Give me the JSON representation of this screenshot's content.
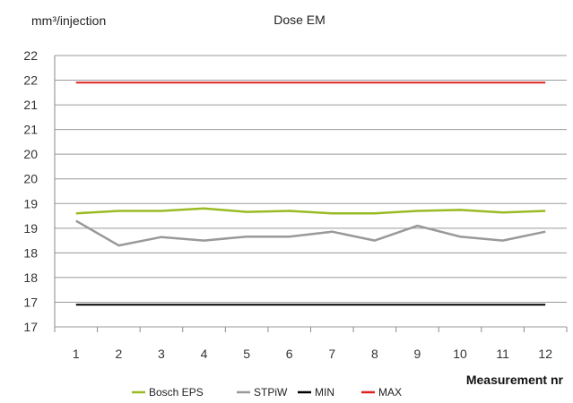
{
  "chart_data": {
    "type": "line",
    "title": "Dose EM",
    "ylabel": "mm³/injection",
    "xlabel": "Measurement nr",
    "x": [
      1,
      2,
      3,
      4,
      5,
      6,
      7,
      8,
      9,
      10,
      11,
      12
    ],
    "y_tick_labels": [
      "17",
      "17",
      "18",
      "18",
      "19",
      "19",
      "20",
      "20",
      "21",
      "21",
      "22",
      "22"
    ],
    "ylim": [
      16.75,
      22.25
    ],
    "grid": true,
    "legend_position": "bottom",
    "series": [
      {
        "name": "Bosch EPS",
        "color": "#99bb22",
        "values": [
          19.05,
          19.1,
          19.1,
          19.15,
          19.08,
          19.1,
          19.05,
          19.05,
          19.1,
          19.12,
          19.07,
          19.1
        ]
      },
      {
        "name": "STPiW",
        "color": "#999999",
        "values": [
          18.9,
          18.4,
          18.57,
          18.5,
          18.58,
          18.58,
          18.68,
          18.5,
          18.8,
          18.58,
          18.5,
          18.68
        ]
      },
      {
        "name": "MIN",
        "color": "#000000",
        "values": [
          17.2,
          17.2,
          17.2,
          17.2,
          17.2,
          17.2,
          17.2,
          17.2,
          17.2,
          17.2,
          17.2,
          17.2
        ]
      },
      {
        "name": "MAX",
        "color": "#dd2222",
        "values": [
          21.7,
          21.7,
          21.7,
          21.7,
          21.7,
          21.7,
          21.7,
          21.7,
          21.7,
          21.7,
          21.7,
          21.7
        ]
      }
    ]
  }
}
